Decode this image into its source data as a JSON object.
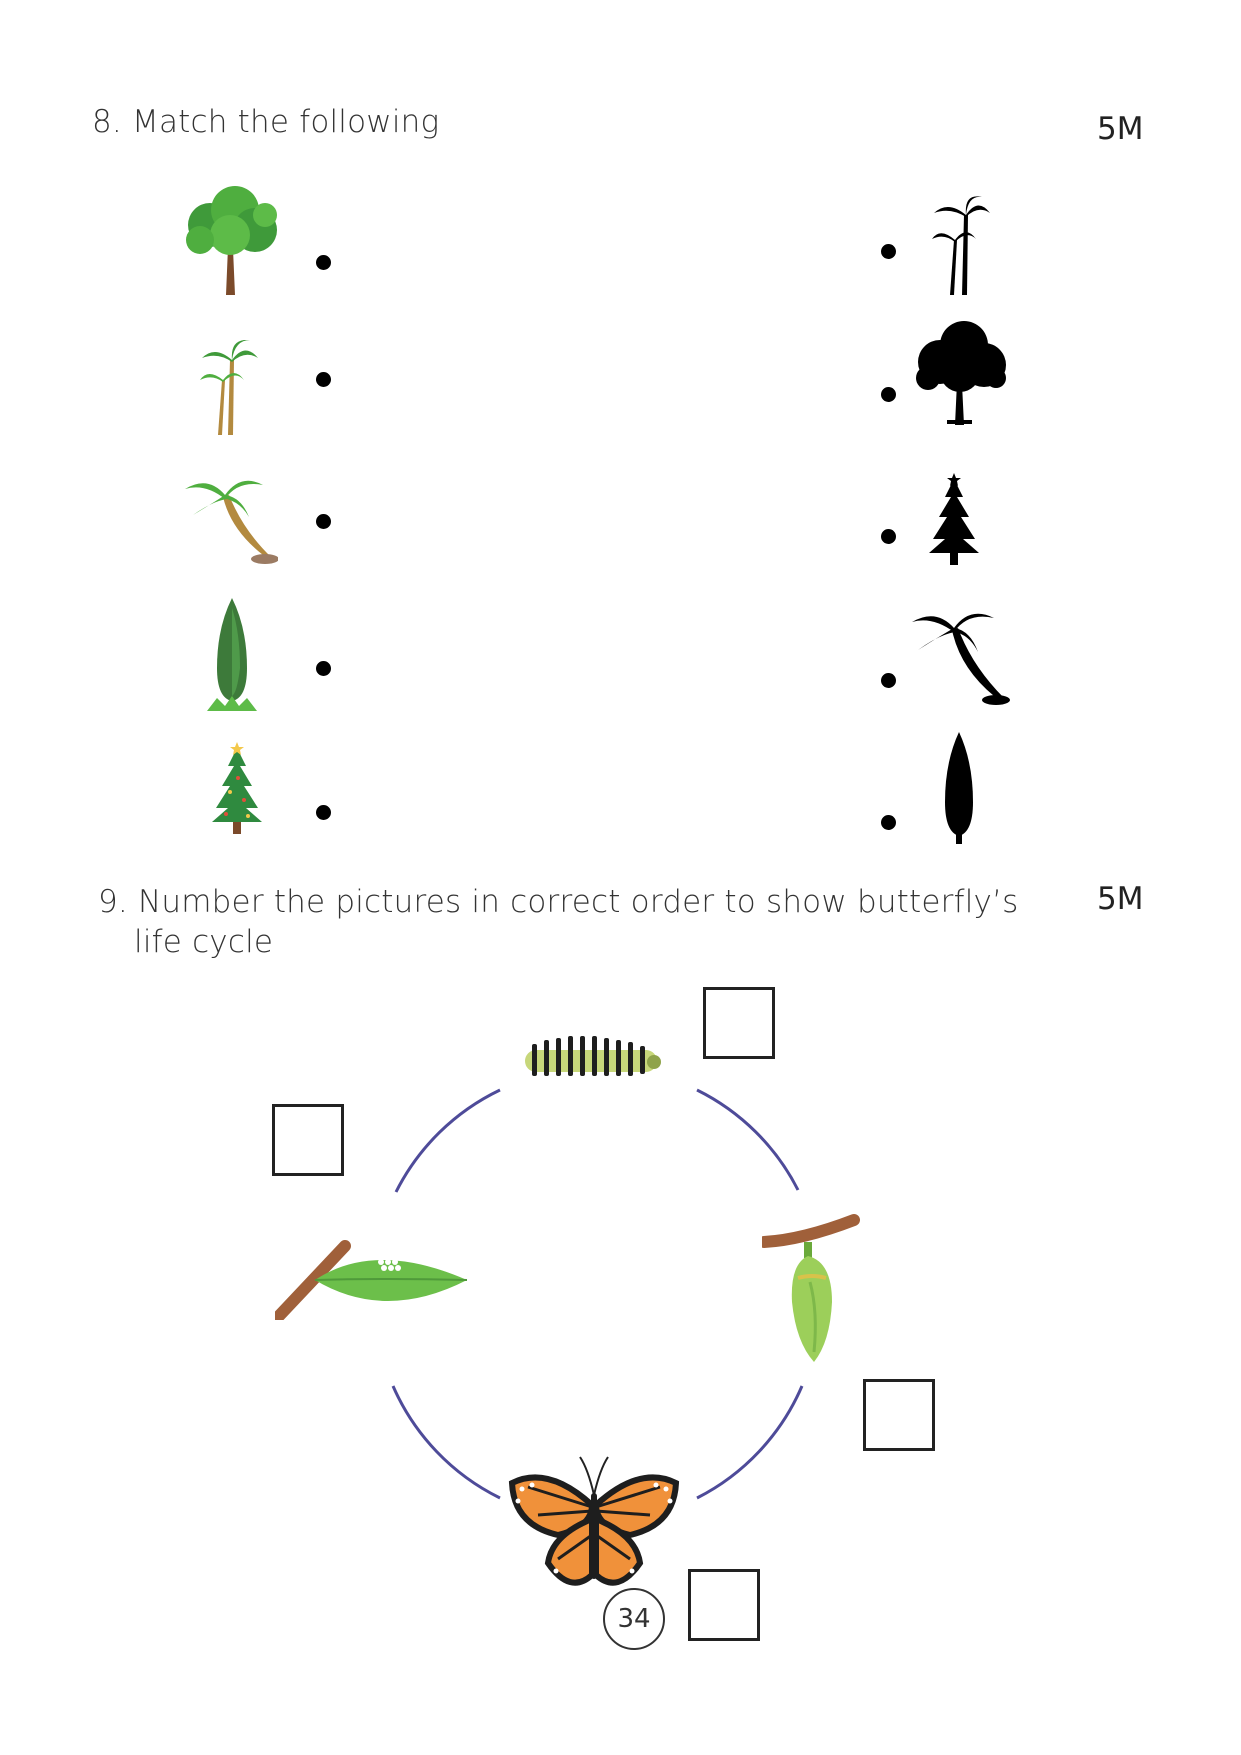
{
  "q8": {
    "title": "8. Match the following",
    "marks": "5M"
  },
  "q8_left_icons": [
    "broadleaf-tree-icon",
    "palm-trees-icon",
    "leaning-coconut-tree-icon",
    "cypress-tree-icon",
    "christmas-tree-icon"
  ],
  "q8_right_icons": [
    "palm-trees-silhouette-icon",
    "broadleaf-tree-silhouette-icon",
    "christmas-tree-silhouette-icon",
    "leaning-coconut-tree-silhouette-icon",
    "cypress-tree-silhouette-icon"
  ],
  "q9": {
    "title_line1": "9. Number the pictures in correct order to show butterfly’s",
    "title_line2": "life cycle",
    "marks": "5M"
  },
  "q9_stages": [
    "caterpillar-icon",
    "chrysalis-icon",
    "butterfly-icon",
    "egg-on-leaf-icon"
  ],
  "colors": {
    "cycle_arc": "#4e4b99",
    "leaf": "#6cbf4a",
    "branch": "#a0603a",
    "butterfly": "#f0913a"
  },
  "page_number": "34"
}
